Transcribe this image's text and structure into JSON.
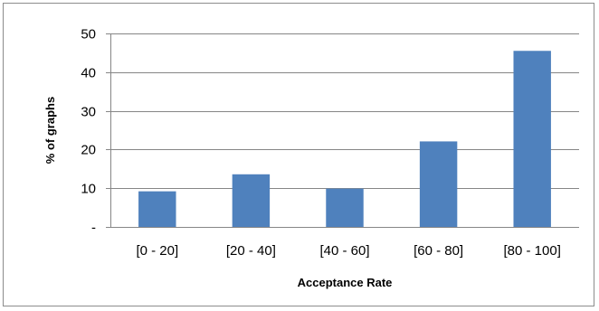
{
  "chart_data": {
    "type": "bar",
    "title": "",
    "xlabel": "Acceptance Rate",
    "ylabel": "% of graphs",
    "categories": [
      "[0 - 20]",
      "[20 - 40]",
      "[40 - 60]",
      "[60 - 80]",
      "[80 - 100]"
    ],
    "values": [
      9.2,
      13.6,
      9.9,
      22.1,
      45.5
    ],
    "ylim": [
      0,
      50
    ],
    "yticks": [
      0,
      10,
      20,
      30,
      40,
      50
    ],
    "ytick_labels": [
      "-",
      "10",
      "20",
      "30",
      "40",
      "50"
    ],
    "grid": true,
    "legend": "none",
    "bar_color": "#4f81bd"
  }
}
